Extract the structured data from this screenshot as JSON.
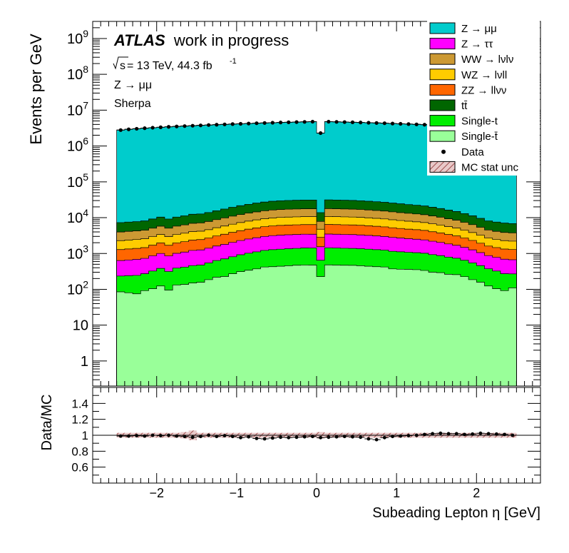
{
  "header": {
    "atlas": "ATLAS",
    "status": "work in progress",
    "energy_prefix": "s",
    "energy_text": " = 13 TeV, 44.3 fb",
    "energy_sup": "-1",
    "channel": "Z → μμ",
    "generator": "Sherpa"
  },
  "colors": {
    "zmm": "#00cccc",
    "ztt": "#ff00ff",
    "ww": "#cc9933",
    "wz": "#ffcc00",
    "zz": "#ff6600",
    "ttbar": "#006600",
    "singlet": "#00ee00",
    "singletbar": "#99ff99",
    "unc": "#c08080"
  },
  "legend": [
    {
      "key": "zmm",
      "label": "Z → μμ",
      "type": "box"
    },
    {
      "key": "ztt",
      "label": "Z → ττ",
      "type": "box"
    },
    {
      "key": "ww",
      "label": "WW → lνlν",
      "type": "box"
    },
    {
      "key": "wz",
      "label": "WZ → lνll",
      "type": "box"
    },
    {
      "key": "zz",
      "label": "ZZ → llνν",
      "type": "box"
    },
    {
      "key": "ttbar",
      "label": "tt̄",
      "type": "box"
    },
    {
      "key": "singlet",
      "label": "Single-t",
      "type": "box"
    },
    {
      "key": "singletbar",
      "label": "Single-t̄",
      "type": "box"
    },
    {
      "key": "data",
      "label": "Data",
      "type": "marker"
    },
    {
      "key": "unc",
      "label": "MC stat unc",
      "type": "hatch"
    }
  ],
  "chart_data": [
    {
      "type": "area",
      "subtype": "stacked-histogram",
      "ylabel": "Events per GeV",
      "yscale": "log",
      "ylim": [
        0.2,
        3000000000
      ],
      "xlim": [
        -2.8,
        2.8
      ],
      "ytick_labels": [
        "1",
        "10",
        "10^2",
        "10^3",
        "10^4",
        "10^5",
        "10^6",
        "10^7",
        "10^8",
        "10^9"
      ],
      "x_edges": [
        -2.5,
        -2.4,
        -2.3,
        -2.2,
        -2.1,
        -2.0,
        -1.9,
        -1.8,
        -1.7,
        -1.6,
        -1.5,
        -1.4,
        -1.3,
        -1.2,
        -1.1,
        -1.0,
        -0.9,
        -0.8,
        -0.7,
        -0.6,
        -0.5,
        -0.4,
        -0.3,
        -0.2,
        -0.1,
        0.0,
        0.1,
        0.2,
        0.3,
        0.4,
        0.5,
        0.6,
        0.7,
        0.8,
        0.9,
        1.0,
        1.1,
        1.2,
        1.3,
        1.4,
        1.5,
        1.6,
        1.7,
        1.8,
        1.9,
        2.0,
        2.1,
        2.2,
        2.3,
        2.4,
        2.5
      ],
      "series": [
        {
          "name": "Single-t̄",
          "key": "singletbar",
          "values": [
            85,
            80,
            75,
            92,
            104,
            124,
            95,
            132,
            137,
            150,
            157,
            186,
            218,
            228,
            272,
            312,
            340,
            372,
            420,
            428,
            440,
            456,
            470,
            476,
            474,
            227,
            480,
            474,
            470,
            466,
            456,
            440,
            428,
            420,
            372,
            364,
            360,
            353,
            336,
            300,
            292,
            263,
            257,
            226,
            186,
            158,
            124,
            104,
            92,
            110
          ]
        },
        {
          "name": "Single-t",
          "key": "singlet",
          "values": [
            150,
            160,
            170,
            180,
            220,
            260,
            220,
            260,
            280,
            310,
            320,
            360,
            420,
            480,
            540,
            610,
            680,
            740,
            800,
            850,
            880,
            900,
            920,
            950,
            950,
            420,
            960,
            950,
            930,
            920,
            900,
            880,
            850,
            820,
            780,
            750,
            720,
            700,
            680,
            630,
            580,
            530,
            480,
            420,
            360,
            300,
            250,
            220,
            180,
            160
          ]
        },
        {
          "name": "Z → ττ",
          "key": "ztt",
          "values": [
            400,
            420,
            440,
            460,
            540,
            620,
            540,
            620,
            680,
            760,
            780,
            860,
            980,
            1100,
            1240,
            1380,
            1520,
            1650,
            1780,
            1880,
            1940,
            1980,
            2000,
            2030,
            2030,
            900,
            2050,
            2030,
            2000,
            1980,
            1940,
            1880,
            1820,
            1750,
            1660,
            1580,
            1510,
            1450,
            1380,
            1270,
            1170,
            1060,
            960,
            840,
            720,
            600,
            500,
            460,
            420,
            400
          ]
        },
        {
          "name": "ZZ → llνν",
          "key": "zz",
          "values": [
            650,
            680,
            700,
            730,
            840,
            960,
            840,
            960,
            1040,
            1160,
            1190,
            1300,
            1470,
            1640,
            1840,
            2040,
            2240,
            2420,
            2600,
            2740,
            2830,
            2890,
            2920,
            2960,
            2960,
            1300,
            2990,
            2960,
            2920,
            2890,
            2830,
            2740,
            2650,
            2550,
            2420,
            2300,
            2200,
            2110,
            2010,
            1850,
            1700,
            1540,
            1400,
            1220,
            1050,
            880,
            740,
            680,
            640,
            620
          ]
        },
        {
          "name": "WZ → lνll",
          "key": "wz",
          "values": [
            1000,
            1040,
            1070,
            1110,
            1260,
            1430,
            1260,
            1430,
            1550,
            1710,
            1750,
            1920,
            2150,
            2400,
            2680,
            2960,
            3240,
            3500,
            3750,
            3950,
            4070,
            4150,
            4200,
            4250,
            4250,
            1900,
            4300,
            4250,
            4200,
            4150,
            4070,
            3950,
            3820,
            3680,
            3500,
            3330,
            3180,
            3050,
            2900,
            2680,
            2460,
            2230,
            2030,
            1770,
            1530,
            1290,
            1090,
            1000,
            950,
            920
          ]
        },
        {
          "name": "WW → lνlν",
          "key": "ww",
          "values": [
            1700,
            1760,
            1810,
            1880,
            2120,
            2390,
            2120,
            2390,
            2590,
            2850,
            2920,
            3200,
            3570,
            3980,
            4440,
            4900,
            5360,
            5780,
            6190,
            6510,
            6710,
            6840,
            6920,
            7000,
            7000,
            3100,
            7080,
            7000,
            6920,
            6840,
            6710,
            6510,
            6300,
            6070,
            5780,
            5500,
            5250,
            5040,
            4790,
            4430,
            4070,
            3690,
            3360,
            2930,
            2540,
            2150,
            1820,
            1680,
            1580,
            1540
          ]
        },
        {
          "name": "tt̄",
          "key": "ttbar",
          "values": [
            3300,
            3400,
            3500,
            3650,
            4100,
            4600,
            4100,
            4600,
            5000,
            5500,
            5600,
            6100,
            6800,
            7600,
            8500,
            9400,
            10200,
            11000,
            11800,
            12400,
            12800,
            13000,
            13200,
            13400,
            13400,
            6000,
            13600,
            13400,
            13200,
            13000,
            12800,
            12400,
            12000,
            11600,
            11000,
            10500,
            10000,
            9600,
            9100,
            8400,
            7700,
            7000,
            6400,
            5600,
            4900,
            4200,
            3600,
            3400,
            3200,
            3100
          ]
        },
        {
          "name": "Z → μμ",
          "key": "zmm",
          "values": [
            2800000,
            2950000,
            3050000,
            3150000,
            3250000,
            3350000,
            3450000,
            3530000,
            3620000,
            3700000,
            3780000,
            3860000,
            3940000,
            4020000,
            4100000,
            4170000,
            4250000,
            4330000,
            4400000,
            4470000,
            4540000,
            4600000,
            4660000,
            4720000,
            4780000,
            2300000,
            4780000,
            4720000,
            4660000,
            4600000,
            4540000,
            4470000,
            4400000,
            4330000,
            4250000,
            4170000,
            4100000,
            4020000,
            3940000,
            3860000,
            3780000,
            3700000,
            3620000,
            3530000,
            3450000,
            3350000,
            3250000,
            3150000,
            3050000,
            2950000
          ]
        }
      ],
      "data": {
        "name": "Data",
        "values": [
          2780000,
          2920000,
          3030000,
          3140000,
          3240000,
          3330000,
          3430000,
          3510000,
          3600000,
          3680000,
          3760000,
          3850000,
          3930000,
          4010000,
          4090000,
          4160000,
          4240000,
          4320000,
          4390000,
          4460000,
          4530000,
          4590000,
          4650000,
          4710000,
          4770000,
          2290000,
          4770000,
          4710000,
          4650000,
          4590000,
          4530000,
          4460000,
          4390000,
          4320000,
          4240000,
          4160000,
          4090000,
          4010000,
          3930000,
          3850000,
          3770000,
          3690000,
          3610000,
          3520000,
          3440000,
          3340000,
          3240000,
          3140000,
          3040000,
          2940000
        ]
      }
    },
    {
      "type": "scatter",
      "subtype": "ratio",
      "ylabel": "Data/MC",
      "xlabel": "Subeading Lepton η [GeV]",
      "ylim": [
        0.4,
        1.6
      ],
      "xlim": [
        -2.8,
        2.8
      ],
      "x_ticks": [
        -2,
        -1,
        0,
        1,
        2
      ],
      "x_tick_labels": [
        "−2",
        "−1",
        "0",
        "1",
        "2"
      ],
      "y_ticks": [
        0.6,
        0.8,
        1.0,
        1.2,
        1.4
      ],
      "y_tick_labels": [
        "0.6",
        "0.8",
        "1",
        "1.2",
        "1.4"
      ],
      "reference_line": 1.0,
      "ratio": [
        0.99,
        0.99,
        0.995,
        0.99,
        1.0,
        0.995,
        1.0,
        0.99,
        0.985,
        0.975,
        0.985,
        1.0,
        0.985,
        0.995,
        0.985,
        0.97,
        0.98,
        0.96,
        0.955,
        0.965,
        0.975,
        0.97,
        0.975,
        0.98,
        0.985,
        0.97,
        0.975,
        0.98,
        0.985,
        0.98,
        0.975,
        0.955,
        0.945,
        0.97,
        0.985,
        0.99,
        0.995,
        1.0,
        1.01,
        1.02,
        1.025,
        1.02,
        1.02,
        1.01,
        1.015,
        1.025,
        1.02,
        1.015,
        1.01,
        1.0
      ],
      "ratio_err": [
        0.01,
        0.01,
        0.01,
        0.01,
        0.01,
        0.01,
        0.01,
        0.01,
        0.02,
        0.025,
        0.01,
        0.01,
        0.01,
        0.01,
        0.01,
        0.01,
        0.01,
        0.01,
        0.01,
        0.01,
        0.01,
        0.01,
        0.01,
        0.01,
        0.01,
        0.015,
        0.01,
        0.01,
        0.01,
        0.01,
        0.01,
        0.01,
        0.01,
        0.01,
        0.01,
        0.01,
        0.01,
        0.01,
        0.01,
        0.01,
        0.01,
        0.01,
        0.01,
        0.01,
        0.01,
        0.01,
        0.01,
        0.01,
        0.01,
        0.01
      ],
      "unc_band": [
        0.03,
        0.03,
        0.03,
        0.03,
        0.03,
        0.03,
        0.03,
        0.03,
        0.04,
        0.06,
        0.03,
        0.03,
        0.03,
        0.03,
        0.03,
        0.03,
        0.03,
        0.03,
        0.03,
        0.03,
        0.03,
        0.03,
        0.03,
        0.03,
        0.03,
        0.04,
        0.03,
        0.03,
        0.03,
        0.03,
        0.03,
        0.03,
        0.03,
        0.03,
        0.03,
        0.03,
        0.03,
        0.03,
        0.03,
        0.03,
        0.03,
        0.03,
        0.03,
        0.03,
        0.03,
        0.03,
        0.03,
        0.03,
        0.03,
        0.03
      ]
    }
  ]
}
